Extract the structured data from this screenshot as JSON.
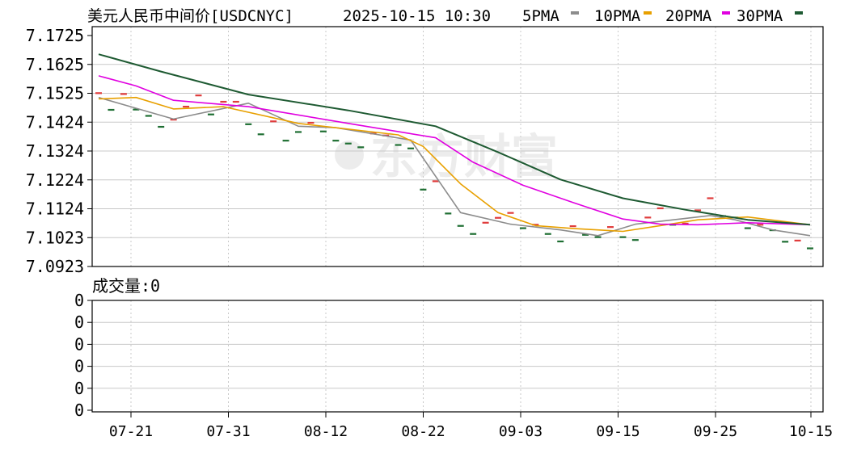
{
  "chart_data": [
    {
      "type": "line",
      "title": "美元人民币中间价[USDCNYC]",
      "timestamp": "2025-10-15 10:30",
      "legend": [
        {
          "name": "5PMA",
          "color": "#8c8c8c"
        },
        {
          "name": "10PMA",
          "color": "#e8a000"
        },
        {
          "name": "20PMA",
          "color": "#e000e0"
        },
        {
          "name": "30PMA",
          "color": "#1e5a32"
        }
      ],
      "y_ticks": [
        "7.1725",
        "7.1625",
        "7.1525",
        "7.1424",
        "7.1324",
        "7.1224",
        "7.1124",
        "7.1023",
        "7.0923"
      ],
      "ylim": [
        7.0923,
        7.1725
      ],
      "x_tick_labels": [
        "07-21",
        "07-31",
        "08-12",
        "08-22",
        "09-03",
        "09-15",
        "09-25",
        "10-15"
      ],
      "grid": true,
      "watermark": "东方财富",
      "colors": {
        "rise": "#e03c3c",
        "fall": "#1e6e32",
        "grid": "#c8c8c8",
        "frame": "#000000"
      },
      "ticks": [
        [
          7.1525,
          1
        ],
        [
          7.1467,
          0
        ],
        [
          7.1522,
          1
        ],
        [
          7.1468,
          0
        ],
        [
          7.1446,
          0
        ],
        [
          7.1408,
          0
        ],
        [
          7.1433,
          1
        ],
        [
          7.1478,
          1
        ],
        [
          7.1517,
          1
        ],
        [
          7.1451,
          0
        ],
        [
          7.1495,
          1
        ],
        [
          7.1495,
          1
        ],
        [
          7.1417,
          0
        ],
        [
          7.1382,
          0
        ],
        [
          7.1427,
          1
        ],
        [
          7.136,
          0
        ],
        [
          7.139,
          0
        ],
        [
          7.1422,
          1
        ],
        [
          7.1392,
          0
        ],
        [
          7.136,
          0
        ],
        [
          7.135,
          0
        ],
        [
          7.1337,
          0
        ],
        [
          7.1385,
          1
        ],
        [
          7.1378,
          1
        ],
        [
          7.1345,
          0
        ],
        [
          7.1333,
          0
        ],
        [
          7.119,
          0
        ],
        [
          7.1219,
          1
        ],
        [
          7.1107,
          0
        ],
        [
          7.1064,
          0
        ],
        [
          7.1036,
          0
        ],
        [
          7.1075,
          1
        ],
        [
          7.1092,
          1
        ],
        [
          7.1109,
          1
        ],
        [
          7.1056,
          0
        ],
        [
          7.1068,
          1
        ],
        [
          7.1036,
          0
        ],
        [
          7.101,
          0
        ],
        [
          7.1063,
          1
        ],
        [
          7.1033,
          0
        ],
        [
          7.1025,
          0
        ],
        [
          7.106,
          1
        ],
        [
          7.1025,
          0
        ],
        [
          7.1015,
          0
        ],
        [
          7.1093,
          1
        ],
        [
          7.1125,
          1
        ],
        [
          7.1068,
          0
        ],
        [
          7.1072,
          1
        ],
        [
          7.1118,
          1
        ],
        [
          7.116,
          1
        ],
        [
          7.1098,
          0
        ],
        [
          7.1093,
          0
        ],
        [
          7.1056,
          0
        ],
        [
          7.1068,
          1
        ],
        [
          7.1049,
          0
        ],
        [
          7.1009,
          0
        ],
        [
          7.1013,
          1
        ],
        [
          7.0986,
          0
        ]
      ],
      "series": [
        {
          "name": "5PMA",
          "x": [
            0,
            6,
            12,
            16,
            19,
            25,
            29,
            33,
            37,
            40,
            43,
            49,
            51,
            54,
            57
          ],
          "values": [
            7.151,
            7.1435,
            7.149,
            7.141,
            7.1405,
            7.1362,
            7.111,
            7.107,
            7.105,
            7.103,
            7.107,
            7.11,
            7.1085,
            7.105,
            7.103
          ]
        },
        {
          "name": "10PMA",
          "x": [
            0,
            3,
            6,
            10,
            16,
            24,
            26,
            29,
            32,
            35,
            38,
            42,
            45,
            48,
            52,
            57
          ],
          "values": [
            7.1505,
            7.151,
            7.147,
            7.1478,
            7.142,
            7.138,
            7.134,
            7.121,
            7.111,
            7.1065,
            7.1055,
            7.1045,
            7.1065,
            7.1085,
            7.1095,
            7.1068
          ]
        },
        {
          "name": "20PMA",
          "x": [
            0,
            3,
            6,
            12,
            20,
            27,
            30,
            34,
            38,
            42,
            45,
            48,
            52,
            57
          ],
          "values": [
            7.1585,
            7.155,
            7.15,
            7.1478,
            7.142,
            7.137,
            7.1285,
            7.1205,
            7.1145,
            7.1088,
            7.107,
            7.1068,
            7.1075,
            7.1068
          ]
        },
        {
          "name": "30PMA",
          "x": [
            0,
            5,
            12,
            20,
            27,
            32,
            37,
            42,
            47,
            52,
            57
          ],
          "values": [
            7.166,
            7.16,
            7.152,
            7.1465,
            7.141,
            7.132,
            7.1225,
            7.116,
            7.112,
            7.1085,
            7.1068
          ]
        }
      ]
    },
    {
      "type": "bar",
      "title": "成交量:0",
      "y_ticks": [
        "0",
        "0",
        "0",
        "0",
        "0",
        "0"
      ],
      "values": []
    }
  ]
}
